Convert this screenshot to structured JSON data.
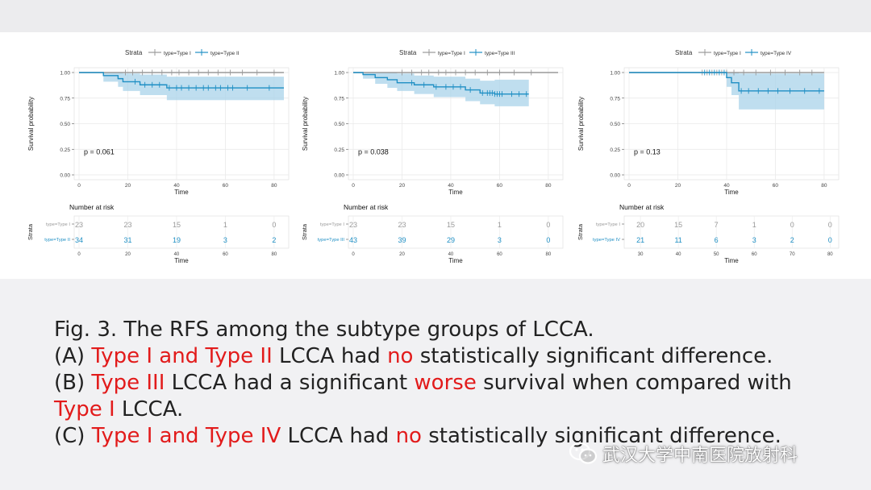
{
  "chart_data": [
    {
      "type": "line",
      "panel": "A",
      "legend_title": "Strata",
      "legend_placement": "top",
      "xlabel": "Time",
      "ylabel": "Survival probability",
      "xlim": [
        0,
        84
      ],
      "ylim": [
        0,
        1
      ],
      "x_ticks": [
        0,
        20,
        40,
        60,
        80
      ],
      "y_ticks": [
        0.0,
        0.25,
        0.5,
        0.75,
        1.0
      ],
      "y_tick_labels": [
        "0.00",
        "0.25",
        "0.50",
        "0.75",
        "1.00"
      ],
      "grid": true,
      "pvalue_text": "p = 0.061",
      "series": [
        {
          "name": "type=Type I",
          "color": "#9a9a9a",
          "steps": [
            [
              0,
              1.0
            ],
            [
              84,
              1.0
            ]
          ],
          "censor": [
            19,
            22,
            26,
            30,
            34,
            38,
            41,
            45,
            49,
            53,
            57,
            62,
            67,
            73,
            80
          ]
        },
        {
          "name": "type=Type II",
          "color": "#1f8fc4",
          "steps": [
            [
              0,
              1.0
            ],
            [
              10,
              0.97
            ],
            [
              16,
              0.94
            ],
            [
              18,
              0.91
            ],
            [
              25,
              0.88
            ],
            [
              36,
              0.85
            ],
            [
              84,
              0.85
            ]
          ],
          "ci_upper": [
            [
              0,
              1.0
            ],
            [
              10,
              1.0
            ],
            [
              16,
              1.0
            ],
            [
              18,
              0.99
            ],
            [
              25,
              0.98
            ],
            [
              36,
              0.96
            ],
            [
              84,
              0.96
            ]
          ],
          "ci_lower": [
            [
              0,
              1.0
            ],
            [
              10,
              0.91
            ],
            [
              16,
              0.86
            ],
            [
              18,
              0.82
            ],
            [
              25,
              0.78
            ],
            [
              36,
              0.73
            ],
            [
              84,
              0.73
            ]
          ],
          "censor": [
            23,
            27,
            30,
            33,
            37,
            40,
            42,
            45,
            48,
            51,
            53,
            56,
            58,
            61,
            63,
            69,
            78
          ]
        }
      ],
      "risk_table": {
        "title": "Number at risk",
        "y_axis_label": "Strata",
        "x_ticks": [
          0,
          20,
          40,
          60,
          80
        ],
        "xlim": [
          0,
          84
        ],
        "time_points": [
          0,
          20,
          40,
          60,
          80
        ],
        "rows": [
          {
            "label": "type=Type I",
            "color": "#9a9a9a",
            "values": [
              "23",
              "23",
              "15",
              "1",
              "0"
            ]
          },
          {
            "label": "type=Type II",
            "color": "#1f8fc4",
            "values": [
              "34",
              "31",
              "19",
              "3",
              "2"
            ]
          }
        ]
      }
    },
    {
      "type": "line",
      "panel": "B",
      "legend_title": "Strata",
      "legend_placement": "top",
      "xlabel": "Time",
      "ylabel": "Survival probability",
      "xlim": [
        0,
        84
      ],
      "ylim": [
        0,
        1
      ],
      "x_ticks": [
        0,
        20,
        40,
        60,
        80
      ],
      "y_ticks": [
        0.0,
        0.25,
        0.5,
        0.75,
        1.0
      ],
      "y_tick_labels": [
        "0.00",
        "0.25",
        "0.50",
        "0.75",
        "1.00"
      ],
      "grid": true,
      "pvalue_text": "p = 0.038",
      "series": [
        {
          "name": "type=Type I",
          "color": "#9a9a9a",
          "steps": [
            [
              0,
              1.0
            ],
            [
              84,
              1.0
            ]
          ],
          "censor": [
            20,
            24,
            28,
            31,
            35,
            38,
            42,
            46,
            50,
            55,
            60,
            66,
            73
          ]
        },
        {
          "name": "type=Type III",
          "color": "#1f8fc4",
          "steps": [
            [
              0,
              1.0
            ],
            [
              4,
              0.98
            ],
            [
              9,
              0.95
            ],
            [
              14,
              0.93
            ],
            [
              18,
              0.9
            ],
            [
              25,
              0.88
            ],
            [
              33,
              0.86
            ],
            [
              46,
              0.83
            ],
            [
              52,
              0.8
            ],
            [
              58,
              0.79
            ],
            [
              72,
              0.79
            ]
          ],
          "ci_upper": [
            [
              0,
              1.0
            ],
            [
              4,
              1.0
            ],
            [
              9,
              1.0
            ],
            [
              14,
              1.0
            ],
            [
              18,
              0.99
            ],
            [
              25,
              0.97
            ],
            [
              33,
              0.96
            ],
            [
              46,
              0.94
            ],
            [
              52,
              0.92
            ],
            [
              58,
              0.93
            ],
            [
              72,
              0.93
            ]
          ],
          "ci_lower": [
            [
              0,
              1.0
            ],
            [
              4,
              0.94
            ],
            [
              9,
              0.89
            ],
            [
              14,
              0.85
            ],
            [
              18,
              0.82
            ],
            [
              25,
              0.79
            ],
            [
              33,
              0.76
            ],
            [
              46,
              0.72
            ],
            [
              52,
              0.69
            ],
            [
              58,
              0.67
            ],
            [
              72,
              0.67
            ]
          ],
          "censor": [
            24,
            29,
            34,
            38,
            41,
            44,
            48,
            53,
            55,
            56,
            57,
            58,
            59,
            60,
            61,
            65,
            68,
            71
          ]
        }
      ],
      "risk_table": {
        "title": "Number at risk",
        "y_axis_label": "Strata",
        "x_ticks": [
          0,
          20,
          40,
          60,
          80
        ],
        "xlim": [
          0,
          84
        ],
        "time_points": [
          0,
          20,
          40,
          60,
          80
        ],
        "rows": [
          {
            "label": "type=Type I",
            "color": "#9a9a9a",
            "values": [
              "23",
              "23",
              "15",
              "1",
              "0"
            ]
          },
          {
            "label": "type=Type III",
            "color": "#1f8fc4",
            "values": [
              "43",
              "39",
              "29",
              "3",
              "0"
            ]
          }
        ]
      }
    },
    {
      "type": "line",
      "panel": "C",
      "legend_title": "Strata",
      "legend_placement": "top",
      "xlabel": "Time",
      "ylabel": "Survival probability",
      "xlim": [
        0,
        84
      ],
      "ylim": [
        0,
        1
      ],
      "x_ticks": [
        0,
        20,
        40,
        60,
        80
      ],
      "y_ticks": [
        0.0,
        0.25,
        0.5,
        0.75,
        1.0
      ],
      "y_tick_labels": [
        "0.00",
        "0.25",
        "0.50",
        "0.75",
        "1.00"
      ],
      "grid": true,
      "pvalue_text": "p = 0.13",
      "series": [
        {
          "name": "type=Type I",
          "color": "#9a9a9a",
          "steps": [
            [
              0,
              1.0
            ],
            [
              80,
              1.0
            ]
          ],
          "censor": [
            30,
            32,
            34,
            36,
            38,
            40,
            43,
            47,
            52,
            58,
            64,
            70,
            75
          ]
        },
        {
          "name": "type=Type IV",
          "color": "#1f8fc4",
          "steps": [
            [
              0,
              1.0
            ],
            [
              40,
              0.95
            ],
            [
              42,
              0.9
            ],
            [
              45,
              0.82
            ],
            [
              80,
              0.82
            ]
          ],
          "ci_upper": [
            [
              0,
              1.0
            ],
            [
              40,
              1.0
            ],
            [
              42,
              1.0
            ],
            [
              45,
              0.99
            ],
            [
              80,
              0.99
            ]
          ],
          "ci_lower": [
            [
              0,
              1.0
            ],
            [
              40,
              0.86
            ],
            [
              42,
              0.78
            ],
            [
              45,
              0.64
            ],
            [
              80,
              0.64
            ]
          ],
          "censor": [
            31,
            33,
            35,
            37,
            39,
            46,
            49,
            53,
            57,
            61,
            66,
            72,
            78
          ]
        }
      ],
      "risk_table": {
        "title": "Number at risk",
        "y_axis_label": "Strata",
        "x_ticks": [
          30,
          40,
          50,
          60,
          70,
          80
        ],
        "xlim": [
          27,
          81
        ],
        "time_points": [
          30,
          40,
          50,
          60,
          70,
          80
        ],
        "rows": [
          {
            "label": "type=Type I",
            "color": "#9a9a9a",
            "values": [
              "20",
              "15",
              "7",
              "1",
              "0",
              "0"
            ]
          },
          {
            "label": "type=Type IV",
            "color": "#1f8fc4",
            "values": [
              "21",
              "11",
              "6",
              "3",
              "2",
              "0"
            ]
          }
        ]
      }
    }
  ],
  "caption": {
    "line1": "Fig. 3. The RFS among the subtype groups of LCCA.",
    "line2_a": "(A) ",
    "line2_b": "Type I and Type II",
    "line2_c": " LCCA had ",
    "line2_d": "no",
    "line2_e": " statistically significant difference.",
    "line3_a": "(B) ",
    "line3_b": "Type III",
    "line3_c": " LCCA had a significant ",
    "line3_d": "worse",
    "line3_e": " survival when compared with",
    "line4_a": "Type I",
    "line4_b": " LCCA.",
    "line5_a": "(C) ",
    "line5_b": "Type I and Type IV",
    "line5_c": " LCCA had ",
    "line5_d": "no",
    "line5_e": " statistically significant difference."
  },
  "watermark": {
    "text": "武汉大学中南医院放射科",
    "icon": "wechat-icon"
  },
  "colors": {
    "highlight": "#e21b1b",
    "series_blue": "#1f8fc4",
    "series_grey": "#9a9a9a",
    "ci_fill": "#a9d3ea"
  }
}
